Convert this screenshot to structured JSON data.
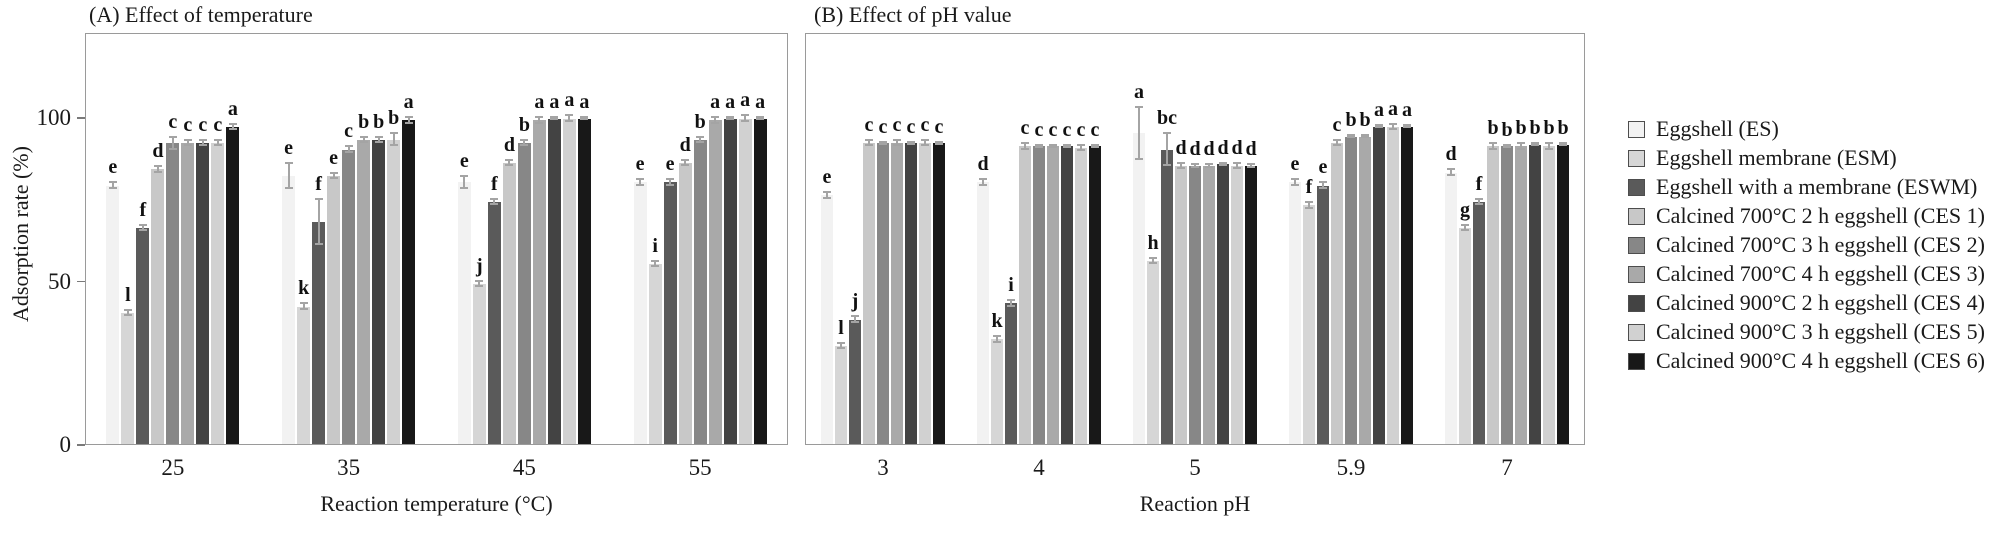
{
  "figure": {
    "ylabel": "Adsorption rate (%)",
    "yticks": [
      {
        "value": 0,
        "label": "0"
      },
      {
        "value": 50,
        "label": "50"
      },
      {
        "value": 100,
        "label": "100"
      }
    ]
  },
  "chart_data": [
    {
      "type": "bar",
      "panel": "A",
      "title": "(A) Effect of temperature",
      "xlabel": "Reaction temperature (°C)",
      "ylabel": "Adsorption rate (%)",
      "ylim": [
        0,
        126
      ],
      "yticks": [
        0,
        50,
        100
      ],
      "grid": false,
      "legend_position": "right-of-figure",
      "error_bars": true,
      "categories": [
        "25",
        "35",
        "45",
        "55"
      ],
      "series": [
        {
          "code": "ES",
          "name": "Eggshell (ES)",
          "color": "#f2f2f2",
          "values": [
            79,
            82,
            80,
            80
          ],
          "errors": [
            1,
            4,
            2,
            1
          ],
          "letters": [
            "e",
            "e",
            "e",
            "e"
          ]
        },
        {
          "code": "ESM",
          "name": "Eggshell membrane (ESM)",
          "color": "#d6d6d6",
          "values": [
            40,
            42,
            49,
            55
          ],
          "errors": [
            1,
            1,
            1,
            1
          ],
          "letters": [
            "l",
            "k",
            "j",
            "i"
          ]
        },
        {
          "code": "ESWM",
          "name": "Eggshell with a membrane (ESWM)",
          "color": "#5a5a5a",
          "values": [
            66,
            68,
            74,
            80
          ],
          "errors": [
            1,
            7,
            1,
            1
          ],
          "letters": [
            "f",
            "f",
            "f",
            "e"
          ]
        },
        {
          "code": "CES1",
          "name": "Calcined 700°C 2 h eggshell (CES 1)",
          "color": "#c8c8c8",
          "values": [
            84,
            82,
            86,
            86
          ],
          "errors": [
            1,
            1,
            1,
            1
          ],
          "letters": [
            "d",
            "e",
            "d",
            "d"
          ]
        },
        {
          "code": "CES2",
          "name": "Calcined 700°C 3 h eggshell (CES 2)",
          "color": "#878787",
          "values": [
            92,
            90,
            92,
            93
          ],
          "errors": [
            2,
            1,
            1,
            1
          ],
          "letters": [
            "c",
            "c",
            "b",
            "b"
          ]
        },
        {
          "code": "CES3",
          "name": "Calcined 700°C 4 h eggshell (CES 3)",
          "color": "#a9a9a9",
          "values": [
            92,
            93,
            99,
            99
          ],
          "errors": [
            1,
            1,
            1,
            1
          ],
          "letters": [
            "c",
            "b",
            "a",
            "a"
          ]
        },
        {
          "code": "CES4",
          "name": "Calcined 900°C 2 h eggshell (CES 4)",
          "color": "#434343",
          "values": [
            92,
            93,
            99.5,
            99.5
          ],
          "errors": [
            1,
            1,
            0.5,
            0.5
          ],
          "letters": [
            "c",
            "b",
            "a",
            "a"
          ]
        },
        {
          "code": "CES5",
          "name": "Calcined 900°C 3 h eggshell (CES 5)",
          "color": "#d1d1d1",
          "values": [
            92,
            93,
            99.5,
            99.5
          ],
          "errors": [
            1,
            2,
            1,
            1
          ],
          "letters": [
            "c",
            "b",
            "a",
            "a"
          ]
        },
        {
          "code": "CES6",
          "name": "Calcined 900°C 4 h eggshell (CES 6)",
          "color": "#181818",
          "values": [
            97,
            99,
            99.5,
            99.5
          ],
          "errors": [
            1,
            1,
            0.5,
            0.5
          ],
          "letters": [
            "a",
            "a",
            "a",
            "a"
          ]
        }
      ]
    },
    {
      "type": "bar",
      "panel": "B",
      "title": "(B) Effect of pH value",
      "xlabel": "Reaction pH",
      "ylabel": "Adsorption rate (%)",
      "ylim": [
        0,
        126
      ],
      "yticks": [
        0,
        50,
        100
      ],
      "grid": false,
      "legend_position": "right-of-figure",
      "error_bars": true,
      "categories": [
        "3",
        "4",
        "5",
        "5.9",
        "7"
      ],
      "series": [
        {
          "code": "ES",
          "name": "Eggshell (ES)",
          "color": "#f2f2f2",
          "values": [
            76,
            80,
            95,
            80,
            83
          ],
          "errors": [
            1,
            1,
            8,
            1,
            1
          ],
          "letters": [
            "e",
            "d",
            "a",
            "e",
            "d"
          ]
        },
        {
          "code": "ESM",
          "name": "Eggshell membrane (ESM)",
          "color": "#d6d6d6",
          "values": [
            30,
            32,
            56,
            73,
            66
          ],
          "errors": [
            1,
            1,
            1,
            1,
            1
          ],
          "letters": [
            "l",
            "k",
            "h",
            "f",
            "g"
          ]
        },
        {
          "code": "ESWM",
          "name": "Eggshell with a membrane (ESWM)",
          "color": "#5a5a5a",
          "values": [
            38,
            43,
            90,
            79,
            74
          ],
          "errors": [
            1,
            1,
            5,
            1,
            1
          ],
          "letters": [
            "j",
            "i",
            "bc",
            "e",
            "f"
          ]
        },
        {
          "code": "CES1",
          "name": "Calcined 700°C 2 h eggshell (CES 1)",
          "color": "#c8c8c8",
          "values": [
            92,
            91,
            85,
            92,
            91
          ],
          "errors": [
            1,
            1,
            1,
            1,
            1
          ],
          "letters": [
            "c",
            "c",
            "d",
            "c",
            "b"
          ]
        },
        {
          "code": "CES2",
          "name": "Calcined 700°C 3 h eggshell (CES 2)",
          "color": "#878787",
          "values": [
            92,
            91,
            85,
            94,
            91
          ],
          "errors": [
            0.5,
            0.5,
            0.5,
            0.5,
            0.5
          ],
          "letters": [
            "c",
            "c",
            "d",
            "b",
            "b"
          ]
        },
        {
          "code": "CES3",
          "name": "Calcined 700°C 4 h eggshell (CES 3)",
          "color": "#a9a9a9",
          "values": [
            92,
            91,
            85,
            94,
            91
          ],
          "errors": [
            1,
            0.5,
            0.5,
            0.5,
            1
          ],
          "letters": [
            "c",
            "c",
            "d",
            "b",
            "b"
          ]
        },
        {
          "code": "CES4",
          "name": "Calcined 900°C 2 h eggshell (CES 4)",
          "color": "#434343",
          "values": [
            92,
            91,
            85.5,
            97,
            91.5
          ],
          "errors": [
            0.5,
            0.5,
            0.5,
            0.5,
            0.5
          ],
          "letters": [
            "c",
            "c",
            "d",
            "a",
            "b"
          ]
        },
        {
          "code": "CES5",
          "name": "Calcined 900°C 3 h eggshell (CES 5)",
          "color": "#d1d1d1",
          "values": [
            92,
            90.5,
            85,
            97,
            91
          ],
          "errors": [
            1,
            1,
            1,
            1,
            1
          ],
          "letters": [
            "c",
            "c",
            "d",
            "a",
            "b"
          ]
        },
        {
          "code": "CES6",
          "name": "Calcined 900°C 4 h eggshell (CES 6)",
          "color": "#181818",
          "values": [
            92,
            91,
            85,
            97,
            91.5
          ],
          "errors": [
            0.5,
            0.5,
            0.5,
            0.5,
            0.5
          ],
          "letters": [
            "c",
            "c",
            "d",
            "a",
            "b"
          ]
        }
      ]
    }
  ]
}
